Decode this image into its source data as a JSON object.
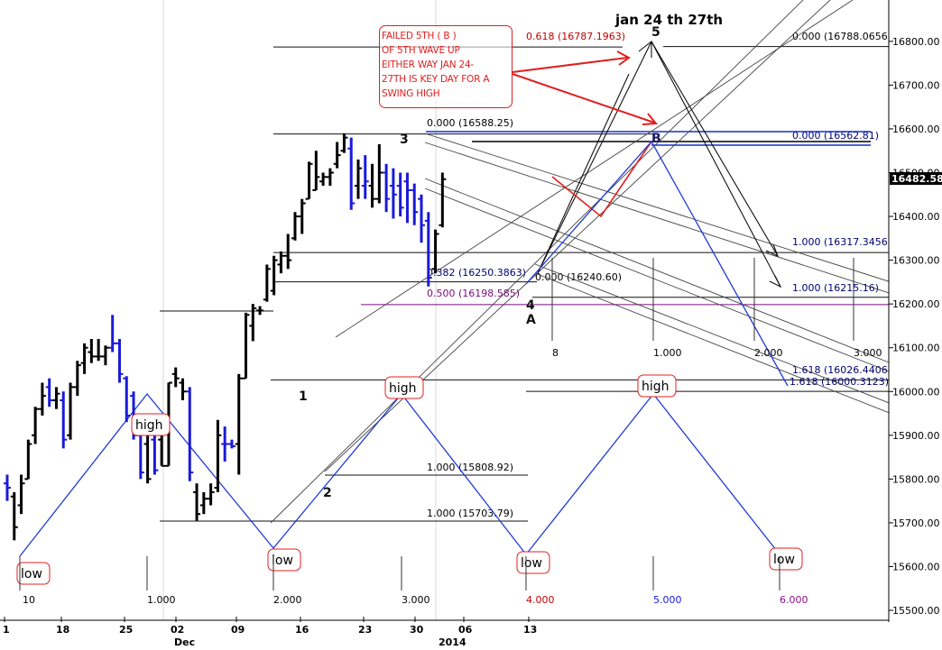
{
  "colors": {
    "bar_black": "#000000",
    "bar_blue": "#1a1ad8",
    "cycle_line": "#1f3ad6",
    "red": "#e02020",
    "fib_text": "#000070",
    "purple": "#7a0a7a",
    "grid": "#e8e8e8"
  },
  "chart_data": {
    "type": "bar",
    "title": "jan 24 th 27th",
    "xlabel": "",
    "ylabel": "",
    "ylim": [
      15500,
      16900
    ],
    "price_ticks": [
      15500,
      15600,
      15700,
      15800,
      15900,
      16000,
      16100,
      16200,
      16300,
      16400,
      16500,
      16600,
      16700,
      16800
    ],
    "price_tick_labels": [
      "15500.00",
      "15600.00",
      "15700.00",
      "15800.00",
      "15900.00",
      "16000.00",
      "16100.00",
      "16200.00",
      "16300.00",
      "16400.00",
      "16500.00",
      "16600.00",
      "16700.00",
      "16800.00"
    ],
    "last_price_label": "16482.58",
    "date_labels": [
      "1",
      "18",
      "25",
      "02",
      "09",
      "16",
      "23",
      "30",
      "06",
      "13"
    ],
    "month_labels": [
      "Dec",
      "2014"
    ],
    "annotation": "FAILED 5TH ( B ) OF 5TH WAVE UP EITHER WAY JAN 24-27TH IS KEY DAY FOR A SWING HIGH",
    "annotation_lines": [
      "FAILED 5TH ( B )",
      "OF 5TH WAVE UP",
      "EITHER WAY JAN 24-",
      "27TH IS KEY DAY FOR A",
      "SWING HIGH"
    ],
    "ohlc": [
      {
        "x": 0,
        "o": 15790,
        "h": 15810,
        "l": 15750,
        "c": 15780,
        "blue": true
      },
      {
        "x": 1,
        "o": 15760,
        "h": 15770,
        "l": 15660,
        "c": 15690,
        "blue": false
      },
      {
        "x": 2,
        "o": 15740,
        "h": 15810,
        "l": 15720,
        "c": 15790,
        "blue": false
      },
      {
        "x": 3,
        "o": 15800,
        "h": 15890,
        "l": 15800,
        "c": 15880,
        "blue": false
      },
      {
        "x": 4,
        "o": 15900,
        "h": 15965,
        "l": 15880,
        "c": 15960,
        "blue": false
      },
      {
        "x": 5,
        "o": 15960,
        "h": 16020,
        "l": 15945,
        "c": 15990,
        "blue": false
      },
      {
        "x": 6,
        "o": 16010,
        "h": 16030,
        "l": 15965,
        "c": 15980,
        "blue": true
      },
      {
        "x": 7,
        "o": 15980,
        "h": 16010,
        "l": 15960,
        "c": 15995,
        "blue": false
      },
      {
        "x": 8,
        "o": 15980,
        "h": 16000,
        "l": 15870,
        "c": 15890,
        "blue": true
      },
      {
        "x": 9,
        "o": 15900,
        "h": 16020,
        "l": 15890,
        "c": 16010,
        "blue": false
      },
      {
        "x": 10,
        "o": 16010,
        "h": 16070,
        "l": 15990,
        "c": 16060,
        "blue": false
      },
      {
        "x": 11,
        "o": 16065,
        "h": 16110,
        "l": 16040,
        "c": 16100,
        "blue": false
      },
      {
        "x": 12,
        "o": 16090,
        "h": 16120,
        "l": 16065,
        "c": 16080,
        "blue": false
      },
      {
        "x": 13,
        "o": 16080,
        "h": 16120,
        "l": 16070,
        "c": 16080,
        "blue": false
      },
      {
        "x": 14,
        "o": 16080,
        "h": 16105,
        "l": 16060,
        "c": 16100,
        "blue": false
      },
      {
        "x": 15,
        "o": 16100,
        "h": 16175,
        "l": 16090,
        "c": 16110,
        "blue": true
      },
      {
        "x": 16,
        "o": 16110,
        "h": 16120,
        "l": 16020,
        "c": 16040,
        "blue": true
      },
      {
        "x": 17,
        "o": 16030,
        "h": 16035,
        "l": 15930,
        "c": 15945,
        "blue": true
      },
      {
        "x": 18,
        "o": 15990,
        "h": 16000,
        "l": 15890,
        "c": 15900,
        "blue": true
      },
      {
        "x": 19,
        "o": 15900,
        "h": 15930,
        "l": 15800,
        "c": 15815,
        "blue": true
      },
      {
        "x": 20,
        "o": 15880,
        "h": 15900,
        "l": 15790,
        "c": 15800,
        "blue": false
      },
      {
        "x": 21,
        "o": 15890,
        "h": 15905,
        "l": 15810,
        "c": 15820,
        "blue": true
      },
      {
        "x": 22,
        "o": 15890,
        "h": 15900,
        "l": 15830,
        "c": 15830,
        "blue": false
      },
      {
        "x": 23,
        "o": 15830,
        "h": 16020,
        "l": 15830,
        "c": 16020,
        "blue": false
      },
      {
        "x": 24,
        "o": 16040,
        "h": 16055,
        "l": 16010,
        "c": 16030,
        "blue": false
      },
      {
        "x": 25,
        "o": 16020,
        "h": 16030,
        "l": 15980,
        "c": 16000,
        "blue": false
      },
      {
        "x": 26,
        "o": 16000,
        "h": 16010,
        "l": 15795,
        "c": 15815,
        "blue": true
      },
      {
        "x": 27,
        "o": 15770,
        "h": 15790,
        "l": 15705,
        "c": 15720,
        "blue": false
      },
      {
        "x": 28,
        "o": 15740,
        "h": 15770,
        "l": 15720,
        "c": 15755,
        "blue": false
      },
      {
        "x": 29,
        "o": 15755,
        "h": 15790,
        "l": 15740,
        "c": 15770,
        "blue": false
      },
      {
        "x": 30,
        "o": 15780,
        "h": 15935,
        "l": 15770,
        "c": 15900,
        "blue": false
      },
      {
        "x": 31,
        "o": 15880,
        "h": 15920,
        "l": 15840,
        "c": 15880,
        "blue": true
      },
      {
        "x": 32,
        "o": 15880,
        "h": 15890,
        "l": 15870,
        "c": 15875,
        "blue": true
      },
      {
        "x": 33,
        "o": 15880,
        "h": 16040,
        "l": 15810,
        "c": 16030,
        "blue": false
      },
      {
        "x": 34,
        "o": 16030,
        "h": 16180,
        "l": 16030,
        "c": 16175,
        "blue": false
      },
      {
        "x": 35,
        "o": 16150,
        "h": 16200,
        "l": 16115,
        "c": 16190,
        "blue": false
      },
      {
        "x": 36,
        "o": 16185,
        "h": 16195,
        "l": 16175,
        "c": 16185,
        "blue": false
      },
      {
        "x": 37,
        "o": 16210,
        "h": 16290,
        "l": 16205,
        "c": 16280,
        "blue": false
      },
      {
        "x": 38,
        "o": 16230,
        "h": 16310,
        "l": 16220,
        "c": 16300,
        "blue": false
      },
      {
        "x": 39,
        "o": 16290,
        "h": 16320,
        "l": 16270,
        "c": 16310,
        "blue": false
      },
      {
        "x": 40,
        "o": 16310,
        "h": 16360,
        "l": 16280,
        "c": 16300,
        "blue": false
      },
      {
        "x": 41,
        "o": 16350,
        "h": 16410,
        "l": 16345,
        "c": 16400,
        "blue": false
      },
      {
        "x": 42,
        "o": 16400,
        "h": 16440,
        "l": 16360,
        "c": 16430,
        "blue": false
      },
      {
        "x": 43,
        "o": 16440,
        "h": 16525,
        "l": 16440,
        "c": 16520,
        "blue": false
      },
      {
        "x": 44,
        "o": 16460,
        "h": 16550,
        "l": 16460,
        "c": 16490,
        "blue": false
      },
      {
        "x": 45,
        "o": 16480,
        "h": 16500,
        "l": 16470,
        "c": 16490,
        "blue": false
      },
      {
        "x": 46,
        "o": 16490,
        "h": 16510,
        "l": 16470,
        "c": 16500,
        "blue": false
      },
      {
        "x": 47,
        "o": 16520,
        "h": 16570,
        "l": 16510,
        "c": 16540,
        "blue": false
      },
      {
        "x": 48,
        "o": 16550,
        "h": 16590,
        "l": 16545,
        "c": 16580,
        "blue": false
      },
      {
        "x": 49,
        "o": 16555,
        "h": 16580,
        "l": 16415,
        "c": 16430,
        "blue": true
      },
      {
        "x": 50,
        "o": 16470,
        "h": 16530,
        "l": 16440,
        "c": 16510,
        "blue": false
      },
      {
        "x": 51,
        "o": 16470,
        "h": 16540,
        "l": 16440,
        "c": 16480,
        "blue": true
      },
      {
        "x": 52,
        "o": 16470,
        "h": 16520,
        "l": 16420,
        "c": 16440,
        "blue": false
      },
      {
        "x": 53,
        "o": 16440,
        "h": 16565,
        "l": 16430,
        "c": 16500,
        "blue": false
      },
      {
        "x": 54,
        "o": 16500,
        "h": 16520,
        "l": 16410,
        "c": 16440,
        "blue": true
      },
      {
        "x": 55,
        "o": 16470,
        "h": 16510,
        "l": 16395,
        "c": 16450,
        "blue": true
      },
      {
        "x": 56,
        "o": 16470,
        "h": 16500,
        "l": 16400,
        "c": 16420,
        "blue": true
      },
      {
        "x": 57,
        "o": 16480,
        "h": 16500,
        "l": 16385,
        "c": 16460,
        "blue": true
      },
      {
        "x": 58,
        "o": 16460,
        "h": 16475,
        "l": 16380,
        "c": 16410,
        "blue": true
      },
      {
        "x": 59,
        "o": 16440,
        "h": 16450,
        "l": 16340,
        "c": 16380,
        "blue": true
      },
      {
        "x": 60,
        "o": 16390,
        "h": 16410,
        "l": 16240,
        "c": 16260,
        "blue": true
      },
      {
        "x": 61,
        "o": 16280,
        "h": 16370,
        "l": 16270,
        "c": 16360,
        "blue": false
      },
      {
        "x": 62,
        "o": 16380,
        "h": 16500,
        "l": 16375,
        "c": 16485,
        "blue": false
      }
    ],
    "fib_levels": [
      {
        "label": "0.618 (16787.1963)",
        "value": 16787.1963
      },
      {
        "label": "0.000 (16788.0656)",
        "value": 16788.0656
      },
      {
        "label": "0.000 (16588.25)",
        "value": 16588.25
      },
      {
        "label": "0.000 (16562.81)",
        "value": 16562.81
      },
      {
        "label": "1.000 (16317.3456)",
        "value": 16317.3456
      },
      {
        "label": "0.382 (16250.3863)",
        "value": 16250.3863
      },
      {
        "label": "0.000 (16240.60)",
        "value": 16240.6
      },
      {
        "label": "1.000 (16215.16)",
        "value": 16215.16
      },
      {
        "label": "0.500 (16198.585)",
        "value": 16198.585
      },
      {
        "label": "1.618 (16026.4406)",
        "value": 16026.4406
      },
      {
        "label": "1.618 (16000.3123)",
        "value": 16000.3123
      },
      {
        "label": "1.000 (15808.92)",
        "value": 15808.92
      },
      {
        "label": "1.000 (15703.79)",
        "value": 15703.79
      }
    ],
    "wave_labels": [
      "1",
      "2",
      "3",
      "4",
      "A",
      "B",
      "5"
    ],
    "cycle_labels": [
      "high",
      "high",
      "high",
      "low",
      "low",
      "low",
      "low",
      "low"
    ],
    "time_counts": [
      "10",
      "1.000",
      "2.000",
      "3.000",
      "4.000",
      "5.000",
      "6.000"
    ],
    "time_counts_upper": [
      "8",
      "1.000",
      "2.000",
      "3.000"
    ]
  }
}
